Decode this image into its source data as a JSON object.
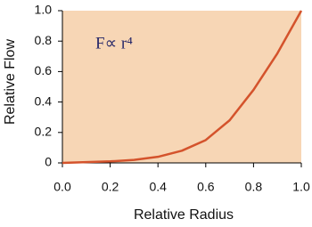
{
  "chart_data": {
    "type": "line",
    "x_label": "Relative Radius",
    "y_label": "Relative Flow",
    "annotation": "F∝ r⁴",
    "x": [
      0,
      0.1,
      0.2,
      0.3,
      0.4,
      0.5,
      0.6,
      0.7,
      0.8,
      0.9,
      1
    ],
    "values": [
      0,
      0.005,
      0.01,
      0.02,
      0.04,
      0.08,
      0.15,
      0.28,
      0.48,
      0.72,
      1
    ],
    "color": "#d4532c",
    "background": "#f7d6b5",
    "xlim": [
      0,
      1
    ],
    "ylim": [
      0,
      1
    ],
    "xticks": [
      {
        "value": 0,
        "label": "0.0"
      },
      0.2,
      0.4,
      0.6,
      0.8,
      {
        "value": 1,
        "label": "1.0"
      }
    ],
    "yticks": [
      0,
      0.2,
      0.4,
      0.6,
      0.8,
      {
        "value": 1,
        "label": "1.0"
      }
    ]
  }
}
